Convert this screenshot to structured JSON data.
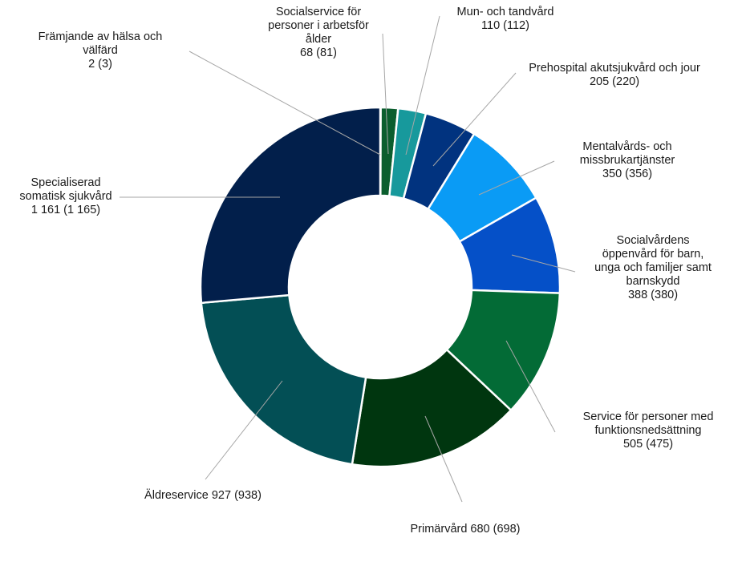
{
  "chart_data": {
    "type": "pie",
    "variant": "donut",
    "title": "",
    "slices": [
      {
        "label_lines": [
          "Främjande av hälsa och",
          "välfärd",
          "2 (3)"
        ],
        "name": "Främjande av hälsa och välfärd",
        "value": 2,
        "previous": 3,
        "color": "#00331f"
      },
      {
        "label_lines": [
          "Socialservice för",
          "personer i arbetsför",
          "ålder",
          "68 (81)"
        ],
        "name": "Socialservice för personer i arbetsför ålder",
        "value": 68,
        "previous": 81,
        "color": "#0b5e2e"
      },
      {
        "label_lines": [
          "Mun- och tandvård",
          "110 (112)"
        ],
        "name": "Mun- och tandvård",
        "value": 110,
        "previous": 112,
        "color": "#17999c"
      },
      {
        "label_lines": [
          "Prehospital akutsjukvård och jour",
          "205 (220)"
        ],
        "name": "Prehospital akutsjukvård och jour",
        "value": 205,
        "previous": 220,
        "color": "#01337f"
      },
      {
        "label_lines": [
          "Mentalvårds- och",
          "missbrukartjänster",
          "350 (356)"
        ],
        "name": "Mentalvårds- och missbrukartjänster",
        "value": 350,
        "previous": 356,
        "color": "#0a9bf5"
      },
      {
        "label_lines": [
          "Socialvårdens",
          "öppenvård för barn,",
          "unga och familjer samt",
          "barnskydd",
          "388 (380)"
        ],
        "name": "Socialvårdens öppenvård för barn, unga och familjer samt barnskydd",
        "value": 388,
        "previous": 380,
        "color": "#0550c8"
      },
      {
        "label_lines": [
          "Service för personer med",
          "funktionsnedsättning",
          "505 (475)"
        ],
        "name": "Service för personer med funktionsnedsättning",
        "value": 505,
        "previous": 475,
        "color": "#036b36"
      },
      {
        "label_lines": [
          "Primärvård  680 (698)"
        ],
        "name": "Primärvård",
        "value": 680,
        "previous": 698,
        "color": "#00360f"
      },
      {
        "label_lines": [
          "Äldreservice  927 (938)"
        ],
        "name": "Äldreservice",
        "value": 927,
        "previous": 938,
        "color": "#034f55"
      },
      {
        "label_lines": [
          "Specialiserad",
          "somatisk sjukvård",
          "1 161 (1 165)"
        ],
        "name": "Specialiserad somatisk sjukvård",
        "value": 1161,
        "previous": 1165,
        "color": "#021f4b"
      }
    ]
  }
}
